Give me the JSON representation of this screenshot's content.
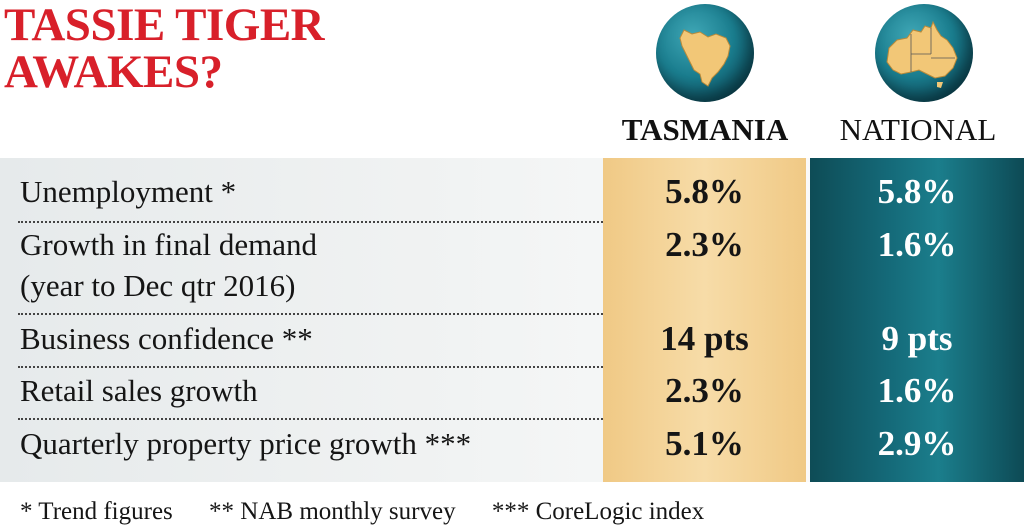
{
  "title": {
    "line1": "TASSIE TIGER",
    "line2": "AWAKES?"
  },
  "columns": {
    "tasmania": "TASMANIA",
    "national": "NATIONAL"
  },
  "rows": [
    {
      "label": "Unemployment *",
      "tasmania": "5.8%",
      "national": "5.8%"
    },
    {
      "label": "Growth in final demand",
      "label2": "(year to Dec qtr 2016)",
      "tasmania": "2.3%",
      "national": "1.6%"
    },
    {
      "label": "Business confidence **",
      "tasmania": "14 pts",
      "national": "9 pts"
    },
    {
      "label": "Retail sales growth",
      "tasmania": "2.3%",
      "national": "1.6%"
    },
    {
      "label": "Quarterly property price growth ***",
      "tasmania": "5.1%",
      "national": "2.9%"
    }
  ],
  "footnotes": [
    "* Trend figures",
    "** NAB monthly survey",
    "*** CoreLogic index"
  ],
  "colors": {
    "title": "#d8202a",
    "tasmania_column": "#f0c985",
    "national_column": "#146877"
  },
  "icons": {
    "tasmania_globe": "tasmania-globe-icon",
    "national_globe": "australia-globe-icon"
  }
}
